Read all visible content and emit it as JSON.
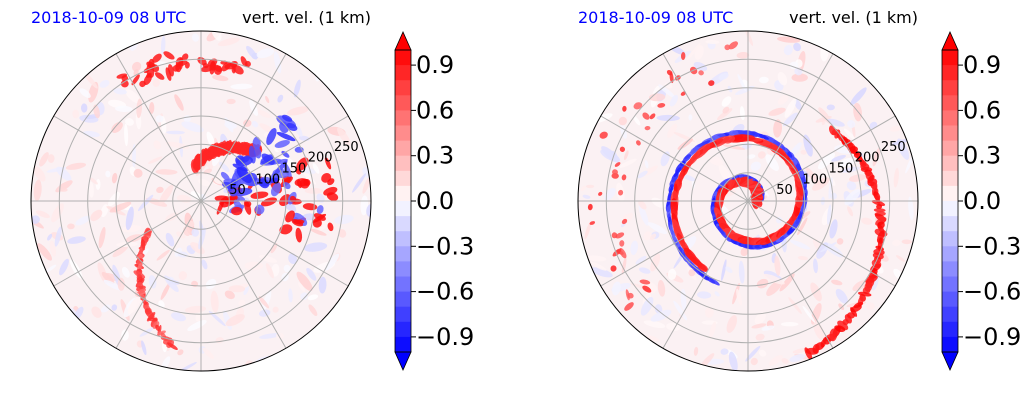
{
  "chart_data": [
    {
      "type": "heatmap",
      "projection": "polar",
      "title_left": "2018-10-09 08 UTC",
      "title_right": "vert. vel. (1 km)",
      "radial_tick_labels": [
        "50",
        "100",
        "150",
        "200",
        "250"
      ],
      "radial_ticks": [
        50,
        100,
        150,
        200,
        250
      ],
      "r_max": 300,
      "angular_gridlines_deg": [
        0,
        30,
        60,
        90,
        120,
        150,
        180,
        210,
        240,
        270,
        300,
        330
      ],
      "grid": true,
      "colormap": "bwr",
      "colorbar": {
        "ticks": [
          0.9,
          0.6,
          0.3,
          0.0,
          -0.3,
          -0.6,
          -0.9
        ],
        "tick_labels": [
          "0.9",
          "0.6",
          "0.3",
          "0.0",
          "−0.3",
          "−0.6",
          "−0.9"
        ],
        "range": [
          -1.0,
          1.0
        ],
        "extend": "both",
        "levels": 20
      }
    },
    {
      "type": "heatmap",
      "projection": "polar",
      "title_left": "2018-10-09 08 UTC",
      "title_right": "vert. vel. (1 km)",
      "radial_tick_labels": [
        "50",
        "100",
        "150",
        "200",
        "250"
      ],
      "radial_ticks": [
        50,
        100,
        150,
        200,
        250
      ],
      "r_max": 300,
      "angular_gridlines_deg": [
        0,
        30,
        60,
        90,
        120,
        150,
        180,
        210,
        240,
        270,
        300,
        330
      ],
      "grid": true,
      "colormap": "bwr",
      "colorbar": {
        "ticks": [
          0.9,
          0.6,
          0.3,
          0.0,
          -0.3,
          -0.6,
          -0.9
        ],
        "tick_labels": [
          "0.9",
          "0.6",
          "0.3",
          "0.0",
          "−0.3",
          "−0.6",
          "−0.9"
        ],
        "range": [
          -1.0,
          1.0
        ],
        "extend": "both",
        "levels": 20
      }
    }
  ],
  "colors": {
    "positive": "#ff0000",
    "negative": "#0000ff",
    "neutral": "#ffffff",
    "date_title": "#0000ff",
    "grid": "#b0b0b0"
  }
}
